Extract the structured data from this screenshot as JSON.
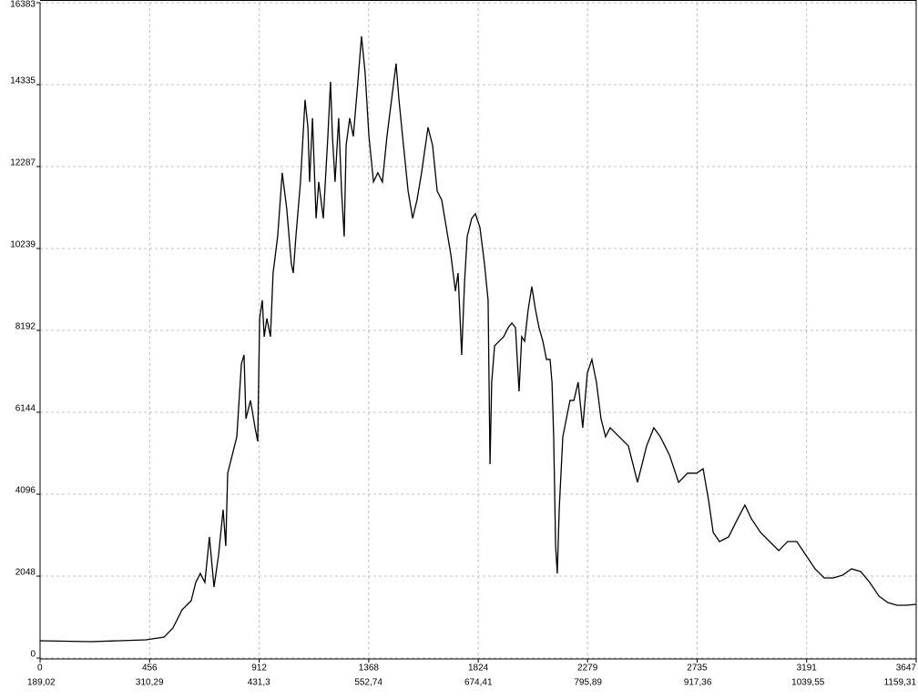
{
  "chart_data": {
    "type": "line",
    "ylim": [
      0,
      16383
    ],
    "yticks": [
      0,
      2048,
      4096,
      6144,
      8192,
      10239,
      12287,
      14335,
      16383
    ],
    "xlim": [
      0,
      3647
    ],
    "xticks": [
      0,
      456,
      912,
      1368,
      1824,
      2279,
      2735,
      3191,
      3647
    ],
    "x2lim": [
      189.02,
      1159.31
    ],
    "x2ticks": [
      {
        "value": 189.02,
        "label": "189,02"
      },
      {
        "value": 310.29,
        "label": "310,29"
      },
      {
        "value": 431.3,
        "label": "431,3"
      },
      {
        "value": 552.74,
        "label": "552,74"
      },
      {
        "value": 674.41,
        "label": "674,41"
      },
      {
        "value": 795.89,
        "label": "795,89"
      },
      {
        "value": 917.36,
        "label": "917,36"
      },
      {
        "value": 1039.55,
        "label": "1039,55"
      },
      {
        "value": 1159.31,
        "label": "1159,31"
      }
    ],
    "grid": true,
    "series": [
      {
        "color": "#000000",
        "x": [
          0,
          212,
          440,
          516,
          553,
          591,
          629,
          648,
          667,
          686,
          705,
          724,
          743,
          762,
          773,
          781,
          800,
          819,
          838,
          849,
          857,
          876,
          895,
          906,
          914,
          925,
          933,
          944,
          959,
          970,
          989,
          1008,
          1027,
          1046,
          1054,
          1065,
          1084,
          1103,
          1115,
          1122,
          1134,
          1149,
          1160,
          1179,
          1198,
          1209,
          1217,
          1228,
          1243,
          1255,
          1266,
          1274,
          1289,
          1304,
          1323,
          1338,
          1353,
          1369,
          1388,
          1406,
          1425,
          1444,
          1463,
          1482,
          1494,
          1509,
          1532,
          1551,
          1569,
          1588,
          1615,
          1634,
          1653,
          1672,
          1691,
          1710,
          1729,
          1740,
          1755,
          1767,
          1778,
          1797,
          1812,
          1831,
          1850,
          1865,
          1873,
          1880,
          1892,
          1911,
          1930,
          1949,
          1964,
          1979,
          1994,
          2005,
          2017,
          2032,
          2047,
          2062,
          2077,
          2093,
          2108,
          2123,
          2131,
          2138,
          2146,
          2153,
          2161,
          2176,
          2191,
          2206,
          2222,
          2240,
          2259,
          2278,
          2297,
          2316,
          2335,
          2354,
          2373,
          2411,
          2449,
          2487,
          2525,
          2555,
          2582,
          2620,
          2658,
          2695,
          2733,
          2760,
          2783,
          2802,
          2828,
          2866,
          2904,
          2934,
          2961,
          2999,
          3037,
          3075,
          3112,
          3150,
          3188,
          3226,
          3264,
          3302,
          3340,
          3378,
          3416,
          3454,
          3492,
          3529,
          3567,
          3605,
          3647
        ],
        "values": [
          432,
          410,
          455,
          523,
          751,
          1206,
          1434,
          1889,
          2117,
          1889,
          3027,
          1775,
          2572,
          3710,
          2799,
          4620,
          5075,
          5531,
          7351,
          7579,
          5986,
          6441,
          5758,
          5417,
          8489,
          8945,
          8034,
          8489,
          8034,
          9627,
          10538,
          12131,
          11221,
          9855,
          9627,
          10538,
          11903,
          13952,
          13269,
          11903,
          13497,
          10993,
          11903,
          10993,
          13041,
          14407,
          13041,
          11903,
          13497,
          11676,
          10538,
          12814,
          13497,
          13041,
          14407,
          15545,
          14635,
          13041,
          11903,
          12131,
          11903,
          13041,
          13952,
          14862,
          13952,
          13041,
          11676,
          10993,
          11448,
          12131,
          13269,
          12814,
          11676,
          11448,
          10765,
          10083,
          9172,
          9627,
          7579,
          9400,
          10538,
          10993,
          11107,
          10765,
          9855,
          8945,
          4848,
          6896,
          7807,
          7920,
          8034,
          8262,
          8376,
          8262,
          6669,
          8034,
          7920,
          8717,
          9286,
          8717,
          8262,
          7920,
          7465,
          7465,
          6896,
          5531,
          2799,
          2117,
          3710,
          5531,
          5986,
          6441,
          6441,
          6896,
          5758,
          7124,
          7465,
          6896,
          5986,
          5531,
          5758,
          5531,
          5303,
          4393,
          5303,
          5758,
          5531,
          5075,
          4393,
          4620,
          4620,
          4734,
          3937,
          3141,
          2913,
          3027,
          3482,
          3824,
          3482,
          3141,
          2913,
          2686,
          2913,
          2913,
          2572,
          2230,
          2003,
          2003,
          2071,
          2230,
          2162,
          1889,
          1548,
          1388,
          1320,
          1320,
          1343
        ]
      }
    ]
  }
}
